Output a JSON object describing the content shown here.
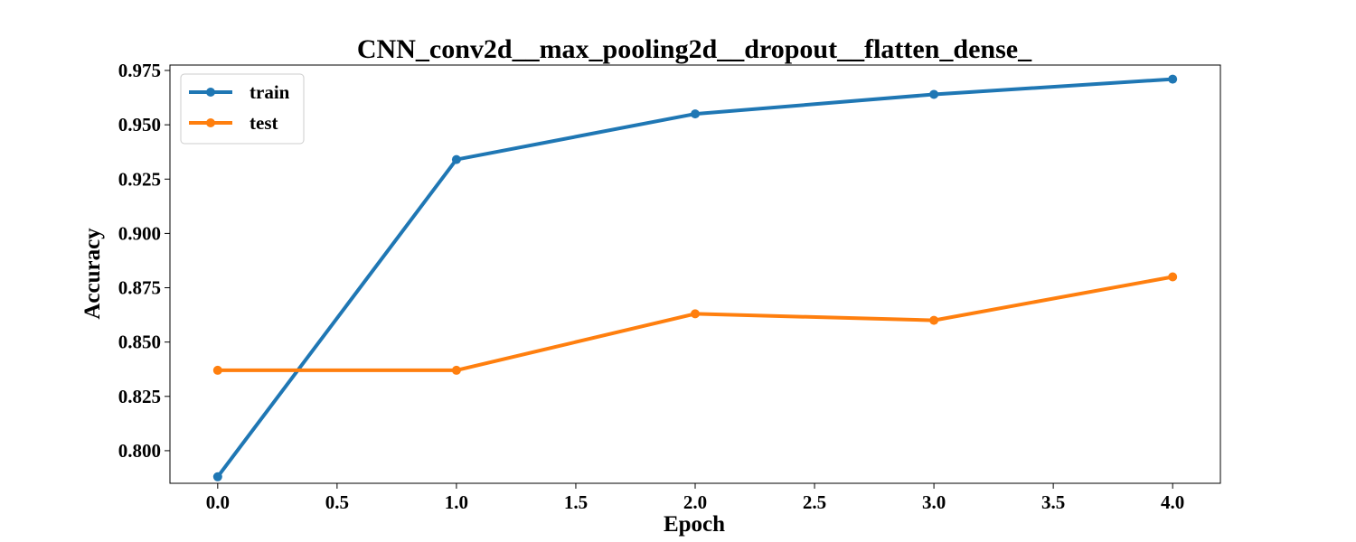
{
  "chart_data": {
    "type": "line",
    "title": "CNN_conv2d__max_pooling2d__dropout__flatten_dense_",
    "xlabel": "Epoch",
    "ylabel": "Accuracy",
    "xlim": [
      -0.2,
      4.2
    ],
    "ylim": [
      0.785,
      0.9775
    ],
    "xticks": [
      0.0,
      0.5,
      1.0,
      1.5,
      2.0,
      2.5,
      3.0,
      3.5,
      4.0
    ],
    "xtick_labels": [
      "0.0",
      "0.5",
      "1.0",
      "1.5",
      "2.0",
      "2.5",
      "3.0",
      "3.5",
      "4.0"
    ],
    "yticks": [
      0.8,
      0.825,
      0.85,
      0.875,
      0.9,
      0.925,
      0.95,
      0.975
    ],
    "ytick_labels": [
      "0.800",
      "0.825",
      "0.850",
      "0.875",
      "0.900",
      "0.925",
      "0.950",
      "0.975"
    ],
    "grid": false,
    "legend_position": "top-left",
    "x": [
      0,
      1,
      2,
      3,
      4
    ],
    "series": [
      {
        "name": "train",
        "color": "#1f77b4",
        "values": [
          0.788,
          0.934,
          0.955,
          0.964,
          0.971
        ]
      },
      {
        "name": "test",
        "color": "#ff7f0e",
        "values": [
          0.837,
          0.837,
          0.863,
          0.86,
          0.88
        ]
      }
    ]
  }
}
